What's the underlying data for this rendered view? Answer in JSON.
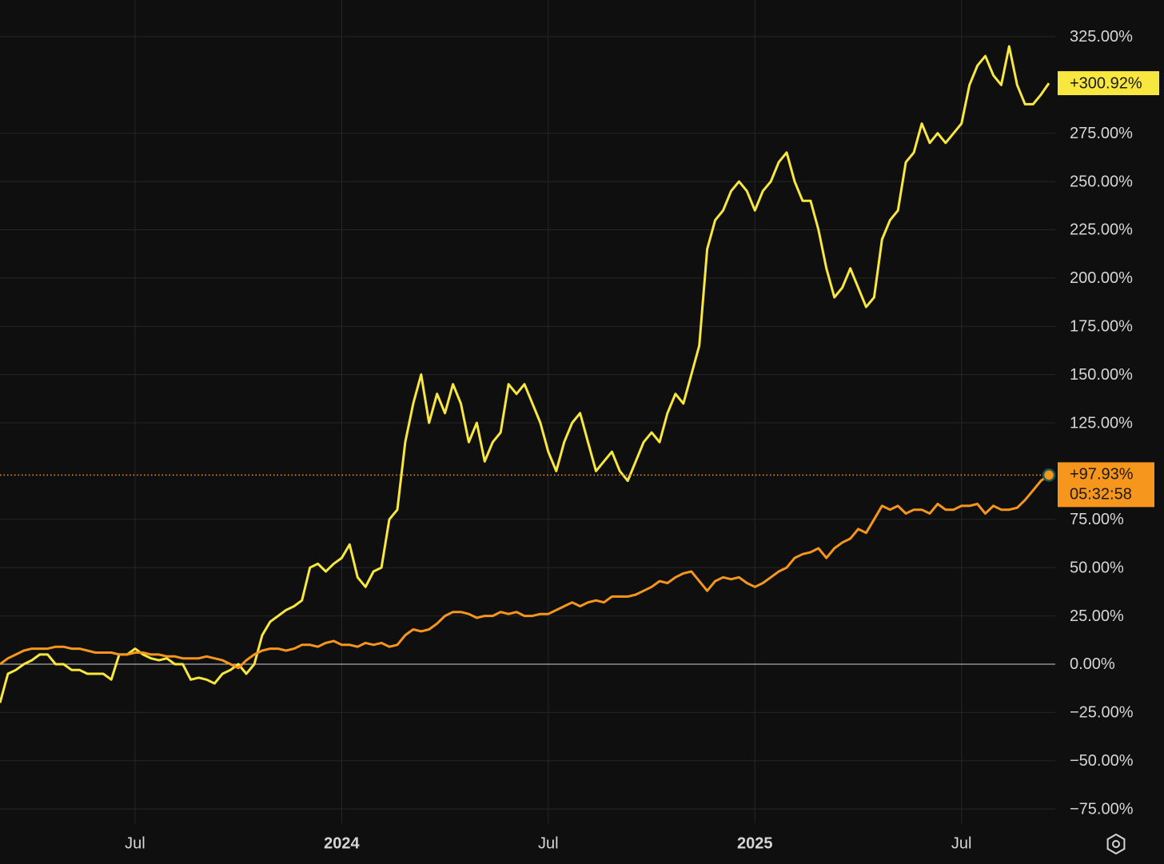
{
  "chart_data": {
    "type": "line",
    "series": [
      {
        "name": null,
        "color": "#f8e73e",
        "last_label": "+300.92%",
        "values": [
          -20,
          -5,
          -3,
          0,
          2,
          5,
          5,
          0,
          0,
          -3,
          -3,
          -5,
          -5,
          -5,
          -8,
          5,
          5,
          8,
          5,
          3,
          2,
          3,
          0,
          0,
          -8,
          -7,
          -8,
          -10,
          -5,
          -3,
          0,
          -5,
          0,
          15,
          22,
          25,
          28,
          30,
          33,
          50,
          52,
          48,
          52,
          55,
          62,
          45,
          40,
          48,
          50,
          75,
          80,
          115,
          135,
          150,
          125,
          140,
          130,
          145,
          135,
          115,
          125,
          105,
          115,
          120,
          145,
          140,
          145,
          135,
          125,
          110,
          100,
          115,
          125,
          130,
          115,
          100,
          105,
          110,
          100,
          95,
          105,
          115,
          120,
          115,
          130,
          140,
          135,
          150,
          165,
          215,
          230,
          235,
          245,
          250,
          245,
          235,
          245,
          250,
          260,
          265,
          250,
          240,
          240,
          225,
          205,
          190,
          195,
          205,
          195,
          185,
          190,
          220,
          230,
          235,
          260,
          265,
          280,
          270,
          275,
          270,
          275,
          280,
          300,
          310,
          315,
          305,
          300,
          320,
          300,
          290,
          290,
          295,
          300.92
        ]
      },
      {
        "name": null,
        "color": "#f7961c",
        "last_label": "+97.93%",
        "countdown": "05:32:58",
        "values": [
          0,
          3,
          5,
          7,
          8,
          8,
          8,
          9,
          9,
          8,
          8,
          7,
          6,
          6,
          6,
          5,
          5,
          6,
          6,
          5,
          5,
          4,
          4,
          3,
          3,
          3,
          4,
          3,
          2,
          0,
          -2,
          2,
          5,
          7,
          8,
          8,
          7,
          8,
          10,
          10,
          9,
          11,
          12,
          10,
          10,
          9,
          11,
          10,
          11,
          9,
          10,
          15,
          18,
          17,
          18,
          21,
          25,
          27,
          27,
          26,
          24,
          25,
          25,
          27,
          26,
          27,
          25,
          25,
          26,
          26,
          28,
          30,
          32,
          30,
          32,
          33,
          32,
          35,
          35,
          35,
          36,
          38,
          40,
          43,
          42,
          45,
          47,
          48,
          43,
          38,
          43,
          45,
          44,
          45,
          42,
          40,
          42,
          45,
          48,
          50,
          55,
          57,
          58,
          60,
          55,
          60,
          63,
          65,
          70,
          68,
          75,
          82,
          80,
          82,
          78,
          80,
          80,
          78,
          83,
          80,
          80,
          82,
          82,
          83,
          78,
          82,
          80,
          80,
          81,
          85,
          90,
          95,
          97.93
        ]
      }
    ],
    "xlim": [
      0,
      132.8
    ],
    "xticks": [
      {
        "value": 17,
        "label": "Jul"
      },
      {
        "value": 43,
        "label": "2024"
      },
      {
        "value": 69,
        "label": "Jul"
      },
      {
        "value": 95,
        "label": "2025"
      },
      {
        "value": 121,
        "label": "Jul"
      }
    ],
    "ylim": [
      -82.4,
      344.0
    ],
    "yticks": [
      {
        "value": 325,
        "label": "325.00%"
      },
      {
        "value": 275,
        "label": "275.00%"
      },
      {
        "value": 250,
        "label": "250.00%"
      },
      {
        "value": 225,
        "label": "225.00%"
      },
      {
        "value": 200,
        "label": "200.00%"
      },
      {
        "value": 175,
        "label": "175.00%"
      },
      {
        "value": 150,
        "label": "150.00%"
      },
      {
        "value": 125,
        "label": "125.00%"
      },
      {
        "value": 75,
        "label": "75.00%"
      },
      {
        "value": 50,
        "label": "50.00%"
      },
      {
        "value": 25,
        "label": "25.00%"
      },
      {
        "value": 0,
        "label": "0.00%"
      },
      {
        "value": -25,
        "label": "−25.00%"
      },
      {
        "value": -50,
        "label": "−50.00%"
      },
      {
        "value": -75,
        "label": "−75.00%"
      }
    ],
    "grid": true
  }
}
